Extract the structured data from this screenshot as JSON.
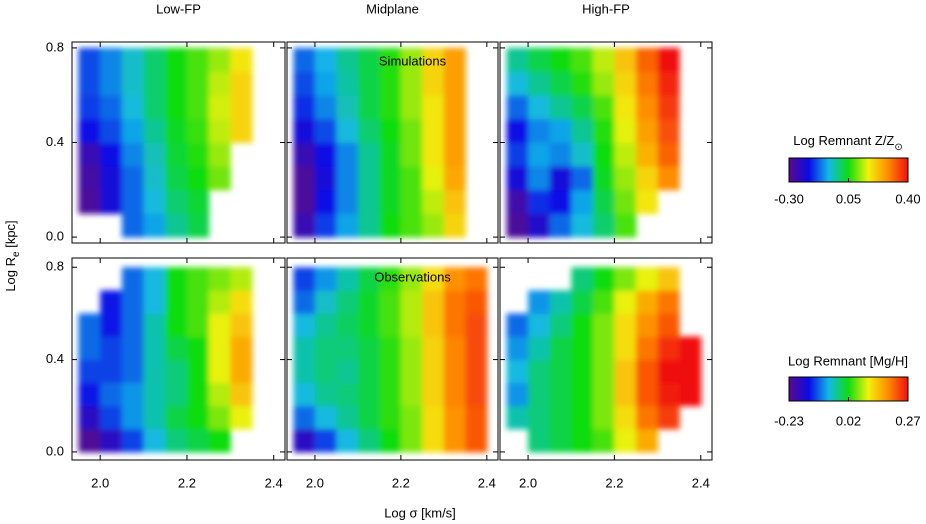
{
  "figure": {
    "xlabel": "Log σ [km/s]",
    "ylabel": {
      "text": "Log R",
      "sub": "e",
      "suffix": " [kpc]"
    }
  },
  "colormap": [
    "#5a0a8c",
    "#0a0ae6",
    "#12b8e8",
    "#10dc10",
    "#f2f20c",
    "#ff8a00",
    "#f01010"
  ],
  "colorbars": [
    {
      "title": {
        "text": "Log Remnant Z/Z",
        "sub": "⊙"
      },
      "ticks": [
        {
          "value": -0.3,
          "label": "-0.30"
        },
        0.05,
        {
          "value": 0.4,
          "label": "0.40"
        }
      ]
    },
    {
      "title": {
        "text": "Log Remnant [Mg/H]"
      },
      "ticks": [
        -0.23,
        0.02,
        0.27
      ]
    }
  ],
  "chart_data": [
    {
      "type": "heatmap",
      "title": "Low-FP",
      "xlim": [
        1.935,
        2.426
      ],
      "ylim": [
        -0.025,
        0.825
      ],
      "xticks": [
        2,
        2.2,
        2.4
      ],
      "yticks": [
        {
          "value": 0,
          "label": "0.0"
        },
        0.4,
        0.8
      ],
      "x": [
        1.975,
        2.025,
        2.075,
        2.125,
        2.175,
        2.225,
        2.275,
        2.325,
        2.375
      ],
      "y": [
        0.05,
        0.15,
        0.25,
        0.35,
        0.45,
        0.55,
        0.65,
        0.75
      ],
      "z": [
        [
          null,
          null,
          -0.12,
          -0.08,
          -0.02,
          0.02,
          null,
          null,
          null
        ],
        [
          -0.28,
          -0.2,
          -0.12,
          -0.06,
          0.0,
          0.03,
          null,
          null,
          null
        ],
        [
          -0.27,
          -0.2,
          -0.12,
          -0.05,
          0.02,
          0.05,
          0.1,
          null,
          null
        ],
        [
          -0.25,
          -0.18,
          -0.1,
          -0.04,
          0.03,
          0.06,
          0.12,
          null,
          null
        ],
        [
          -0.18,
          -0.14,
          -0.08,
          -0.02,
          0.04,
          0.07,
          0.14,
          0.2,
          null
        ],
        [
          -0.15,
          -0.12,
          -0.06,
          0.0,
          0.05,
          0.08,
          0.15,
          0.2,
          null
        ],
        [
          -0.14,
          -0.1,
          -0.05,
          0.0,
          0.05,
          0.08,
          0.14,
          0.2,
          null
        ],
        [
          -0.14,
          -0.1,
          -0.05,
          0.0,
          0.05,
          0.08,
          0.12,
          0.18,
          null
        ]
      ]
    },
    {
      "type": "heatmap",
      "title": "Midplane",
      "annotation": "Simulations",
      "xlim": [
        1.935,
        2.426
      ],
      "ylim": [
        -0.025,
        0.825
      ],
      "xticks": [
        2,
        2.2,
        2.4
      ],
      "yticks": [
        0,
        0.4,
        0.8
      ],
      "x": [
        1.975,
        2.025,
        2.075,
        2.125,
        2.175,
        2.225,
        2.275,
        2.325,
        2.375
      ],
      "y": [
        0.05,
        0.15,
        0.25,
        0.35,
        0.45,
        0.55,
        0.65,
        0.75
      ],
      "z": [
        [
          -0.25,
          -0.15,
          -0.08,
          -0.02,
          0.05,
          0.08,
          0.12,
          0.2,
          null
        ],
        [
          -0.28,
          -0.18,
          -0.1,
          -0.02,
          0.04,
          0.08,
          0.14,
          0.22,
          null
        ],
        [
          -0.28,
          -0.2,
          -0.1,
          -0.02,
          0.04,
          0.08,
          0.16,
          0.25,
          null
        ],
        [
          -0.25,
          -0.18,
          -0.1,
          -0.02,
          0.04,
          0.1,
          0.18,
          0.26,
          null
        ],
        [
          -0.2,
          -0.14,
          -0.06,
          0.0,
          0.05,
          0.1,
          0.18,
          0.26,
          null
        ],
        [
          -0.16,
          -0.1,
          -0.04,
          0.02,
          0.06,
          0.12,
          0.18,
          0.26,
          null
        ],
        [
          -0.14,
          -0.08,
          -0.03,
          0.02,
          0.06,
          0.12,
          0.2,
          0.26,
          null
        ],
        [
          -0.12,
          -0.07,
          -0.02,
          0.02,
          0.06,
          0.12,
          0.2,
          0.26,
          null
        ]
      ]
    },
    {
      "type": "heatmap",
      "title": "High-FP",
      "xlim": [
        1.935,
        2.426
      ],
      "ylim": [
        -0.025,
        0.825
      ],
      "xticks": [
        2,
        2.2,
        2.4
      ],
      "yticks": [
        0,
        0.4,
        0.8
      ],
      "x": [
        1.975,
        2.025,
        2.075,
        2.125,
        2.175,
        2.225,
        2.275,
        2.325,
        2.375
      ],
      "y": [
        0.05,
        0.15,
        0.25,
        0.35,
        0.45,
        0.55,
        0.65,
        0.75
      ],
      "z": [
        [
          -0.28,
          -0.22,
          -0.12,
          -0.06,
          0.0,
          0.08,
          null,
          null,
          null
        ],
        [
          -0.26,
          -0.16,
          -0.18,
          -0.08,
          0.02,
          0.1,
          0.18,
          null,
          null
        ],
        [
          -0.2,
          -0.1,
          -0.2,
          -0.12,
          0.04,
          0.12,
          0.2,
          0.28,
          null
        ],
        [
          -0.15,
          -0.08,
          -0.1,
          -0.05,
          0.05,
          0.14,
          0.24,
          0.32,
          null
        ],
        [
          -0.18,
          -0.1,
          -0.08,
          -0.02,
          0.06,
          0.16,
          0.26,
          0.34,
          null
        ],
        [
          -0.12,
          -0.06,
          -0.02,
          0.02,
          0.08,
          0.18,
          0.28,
          0.36,
          null
        ],
        [
          -0.06,
          -0.02,
          0.02,
          0.06,
          0.12,
          0.2,
          0.3,
          0.38,
          null
        ],
        [
          -0.02,
          0.02,
          0.05,
          0.08,
          0.14,
          0.22,
          0.32,
          0.4,
          null
        ]
      ]
    },
    {
      "type": "heatmap",
      "xlim": [
        1.935,
        2.426
      ],
      "ylim": [
        -0.035,
        0.84
      ],
      "xticks": [
        {
          "value": 2,
          "label": "2.0"
        },
        2.2,
        2.4
      ],
      "yticks": [
        {
          "value": 0,
          "label": "0.0"
        },
        0.4,
        0.8
      ],
      "x": [
        1.975,
        2.025,
        2.075,
        2.125,
        2.175,
        2.225,
        2.275,
        2.325,
        2.375
      ],
      "y": [
        0.05,
        0.15,
        0.25,
        0.35,
        0.45,
        0.55,
        0.65,
        0.75
      ],
      "z": [
        [
          -0.22,
          -0.18,
          -0.12,
          -0.06,
          -0.02,
          0.0,
          0.02,
          null,
          null
        ],
        [
          -0.18,
          -0.12,
          -0.08,
          -0.04,
          0.0,
          0.02,
          0.06,
          0.1,
          null
        ],
        [
          -0.14,
          -0.1,
          -0.08,
          -0.04,
          -0.02,
          0.02,
          0.08,
          0.14,
          null
        ],
        [
          -0.12,
          -0.12,
          -0.1,
          -0.04,
          -0.02,
          0.02,
          0.1,
          0.16,
          null
        ],
        [
          -0.1,
          -0.12,
          -0.1,
          -0.04,
          0.0,
          0.02,
          0.1,
          0.16,
          null
        ],
        [
          -0.1,
          -0.14,
          -0.1,
          -0.04,
          0.02,
          0.04,
          0.1,
          0.14,
          null
        ],
        [
          null,
          -0.14,
          -0.1,
          -0.06,
          0.02,
          0.04,
          0.08,
          0.12,
          null
        ],
        [
          null,
          null,
          -0.1,
          -0.06,
          0.02,
          0.04,
          0.06,
          0.08,
          null
        ]
      ]
    },
    {
      "type": "heatmap",
      "annotation": "Observations",
      "xlim": [
        1.935,
        2.426
      ],
      "ylim": [
        -0.035,
        0.84
      ],
      "xticks": [
        {
          "value": 2,
          "label": "2.0"
        },
        2.2,
        2.4
      ],
      "yticks": [
        0,
        0.4,
        0.8
      ],
      "x": [
        1.975,
        2.025,
        2.075,
        2.125,
        2.175,
        2.225,
        2.275,
        2.325,
        2.375
      ],
      "y": [
        0.05,
        0.15,
        0.25,
        0.35,
        0.45,
        0.55,
        0.65,
        0.75
      ],
      "z": [
        [
          -0.18,
          -0.12,
          -0.06,
          -0.02,
          0.02,
          0.06,
          0.12,
          0.18,
          0.22
        ],
        [
          -0.1,
          -0.06,
          -0.03,
          0.0,
          0.03,
          0.06,
          0.12,
          0.18,
          0.22
        ],
        [
          -0.06,
          -0.03,
          -0.02,
          0.0,
          0.03,
          0.07,
          0.13,
          0.19,
          0.23
        ],
        [
          -0.04,
          -0.02,
          -0.03,
          0.0,
          0.03,
          0.07,
          0.13,
          0.19,
          0.23
        ],
        [
          -0.04,
          -0.02,
          -0.02,
          0.0,
          0.03,
          0.07,
          0.13,
          0.19,
          0.23
        ],
        [
          -0.06,
          -0.03,
          -0.01,
          0.01,
          0.04,
          0.08,
          0.14,
          0.2,
          0.23
        ],
        [
          -0.1,
          -0.05,
          -0.02,
          0.01,
          0.04,
          0.08,
          0.14,
          0.2,
          0.22
        ],
        [
          -0.12,
          -0.08,
          -0.04,
          0.0,
          0.03,
          0.07,
          0.12,
          0.18,
          0.2
        ]
      ]
    },
    {
      "type": "heatmap",
      "xlim": [
        1.935,
        2.426
      ],
      "ylim": [
        -0.035,
        0.84
      ],
      "xticks": [
        {
          "value": 2,
          "label": "2.0"
        },
        2.2,
        2.4
      ],
      "yticks": [
        0,
        0.4,
        0.8
      ],
      "x": [
        1.975,
        2.025,
        2.075,
        2.125,
        2.175,
        2.225,
        2.275,
        2.325,
        2.375
      ],
      "y": [
        0.05,
        0.15,
        0.25,
        0.35,
        0.45,
        0.55,
        0.65,
        0.75
      ],
      "z": [
        [
          null,
          -0.02,
          0.0,
          0.02,
          0.04,
          0.1,
          0.16,
          null,
          null
        ],
        [
          -0.04,
          -0.02,
          0.0,
          0.02,
          0.06,
          0.12,
          0.2,
          0.24,
          null
        ],
        [
          -0.08,
          -0.02,
          0.0,
          0.02,
          0.06,
          0.14,
          0.22,
          0.26,
          0.27
        ],
        [
          -0.06,
          -0.02,
          0.0,
          0.02,
          0.06,
          0.14,
          0.22,
          0.27,
          0.27
        ],
        [
          -0.08,
          -0.04,
          0.0,
          0.02,
          0.06,
          0.12,
          0.2,
          0.25,
          0.27
        ],
        [
          -0.1,
          -0.06,
          -0.02,
          0.02,
          0.06,
          0.12,
          0.18,
          0.22,
          null
        ],
        [
          null,
          -0.08,
          -0.04,
          0.0,
          0.04,
          0.1,
          0.16,
          0.2,
          null
        ],
        [
          null,
          null,
          null,
          -0.02,
          0.02,
          0.06,
          0.1,
          0.14,
          null
        ]
      ]
    }
  ]
}
